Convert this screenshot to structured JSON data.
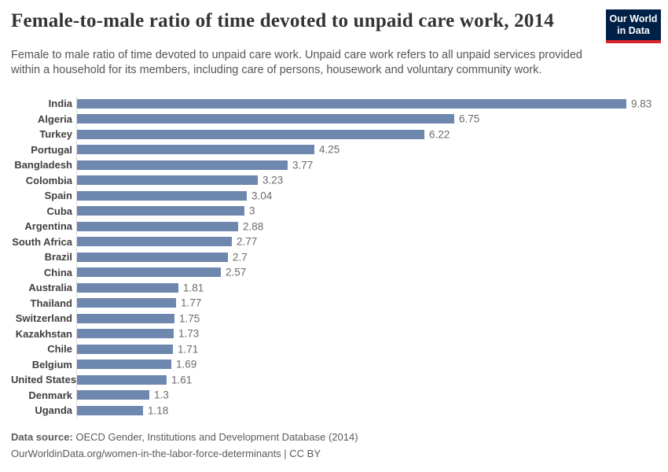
{
  "header": {
    "title": "Female-to-male ratio of time devoted to unpaid care work, 2014",
    "subtitle": "Female to male ratio of time devoted to unpaid care work. Unpaid care work refers to all unpaid services provided within a household for its members, including care of persons, housework and voluntary community work.",
    "logo": {
      "line1": "Our World",
      "line2": "in Data",
      "bg_color": "#002147",
      "stripe_color": "#d8262c"
    }
  },
  "chart_data": {
    "type": "bar",
    "orientation": "horizontal",
    "title": "Female-to-male ratio of time devoted to unpaid care work, 2014",
    "categories": [
      "India",
      "Algeria",
      "Turkey",
      "Portugal",
      "Bangladesh",
      "Colombia",
      "Spain",
      "Cuba",
      "Argentina",
      "South Africa",
      "Brazil",
      "China",
      "Australia",
      "Thailand",
      "Switzerland",
      "Kazakhstan",
      "Chile",
      "Belgium",
      "United States",
      "Denmark",
      "Uganda"
    ],
    "values": [
      9.83,
      6.75,
      6.22,
      4.25,
      3.77,
      3.23,
      3.04,
      3,
      2.88,
      2.77,
      2.7,
      2.57,
      1.81,
      1.77,
      1.75,
      1.73,
      1.71,
      1.69,
      1.61,
      1.3,
      1.18
    ],
    "value_labels": [
      "9.83",
      "6.75",
      "6.22",
      "4.25",
      "3.77",
      "3.23",
      "3.04",
      "3",
      "2.88",
      "2.77",
      "2.7",
      "2.57",
      "1.81",
      "1.77",
      "1.75",
      "1.73",
      "1.71",
      "1.69",
      "1.61",
      "1.3",
      "1.18"
    ],
    "xlabel": "",
    "ylabel": "",
    "xlim": [
      0,
      9.83
    ],
    "grid": false,
    "sort_order": "descending",
    "bar_color": "#6e87ae",
    "axis_line_color": "#dcdcdc"
  },
  "footer": {
    "data_source_label": "Data source:",
    "data_source_text": "OECD Gender, Institutions and Development Database (2014)",
    "citation": "OurWorldinData.org/women-in-the-labor-force-determinants | CC BY"
  }
}
